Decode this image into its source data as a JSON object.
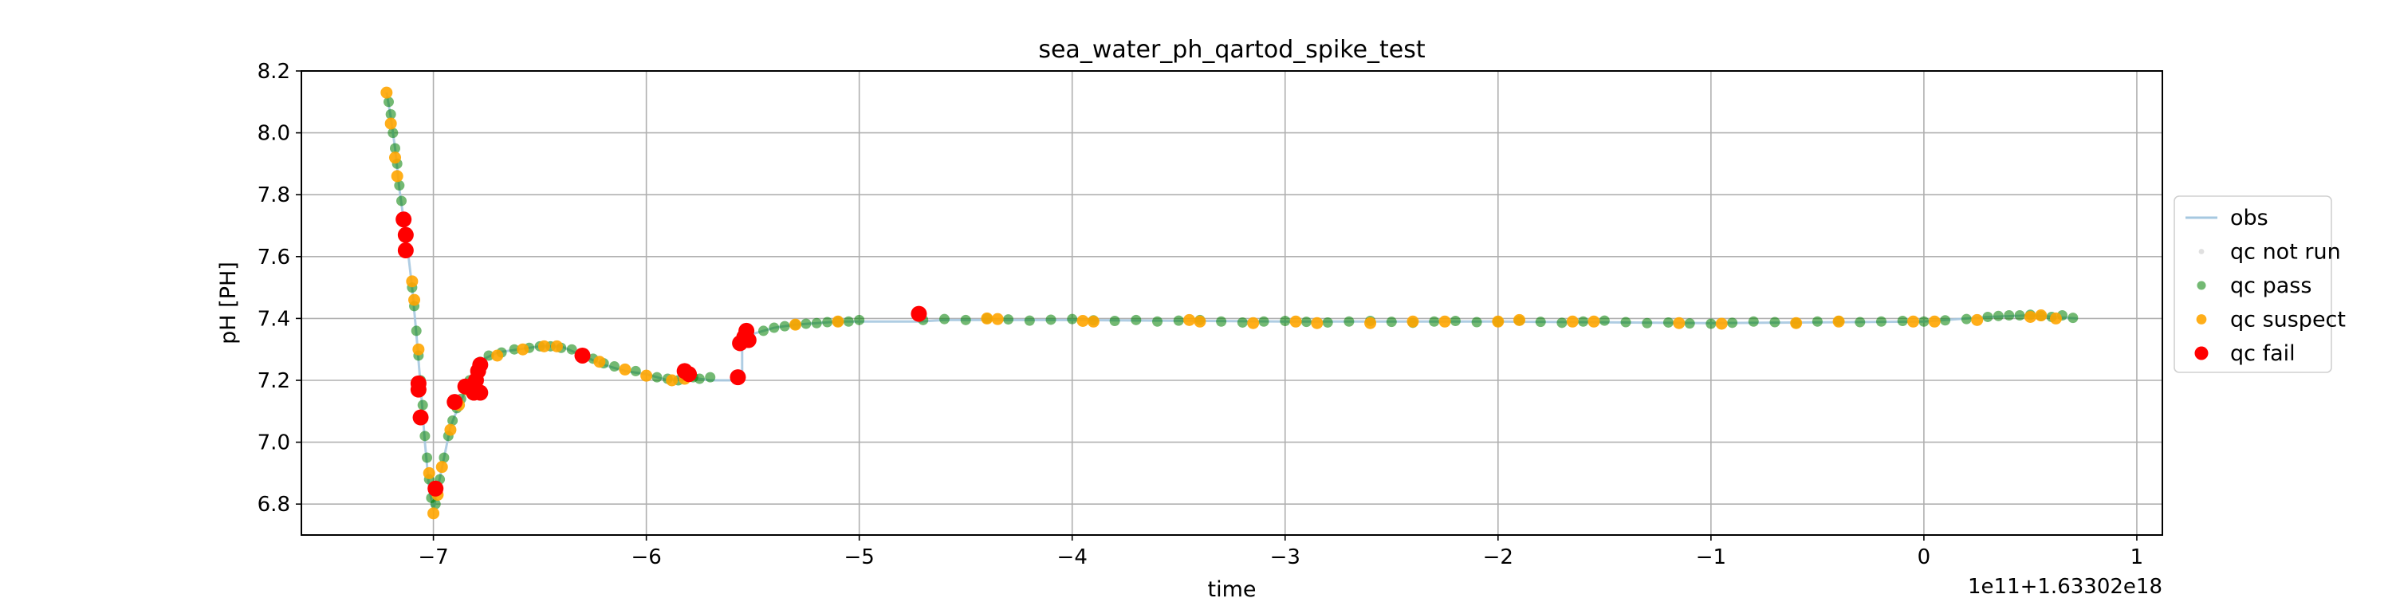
{
  "chart_data": {
    "type": "scatter",
    "title": "sea_water_ph_qartod_spike_test",
    "xlabel": "time",
    "ylabel": "pH [PH]",
    "x_offset_label": "1e11+1.63302e18",
    "xlim": [
      -7.62,
      1.12
    ],
    "ylim": [
      6.7,
      8.2
    ],
    "x_ticks": [
      {
        "value": -7,
        "label": "−7"
      },
      {
        "value": -6,
        "label": "−6"
      },
      {
        "value": -5,
        "label": "−5"
      },
      {
        "value": -4,
        "label": "−4"
      },
      {
        "value": -3,
        "label": "−3"
      },
      {
        "value": -2,
        "label": "−2"
      },
      {
        "value": -1,
        "label": "−1"
      },
      {
        "value": 0,
        "label": "0"
      },
      {
        "value": 1,
        "label": "1"
      }
    ],
    "y_ticks": [
      {
        "value": 6.8,
        "label": "6.8"
      },
      {
        "value": 7.0,
        "label": "7.0"
      },
      {
        "value": 7.2,
        "label": "7.2"
      },
      {
        "value": 7.4,
        "label": "7.4"
      },
      {
        "value": 7.6,
        "label": "7.6"
      },
      {
        "value": 7.8,
        "label": "7.8"
      },
      {
        "value": 8.0,
        "label": "8.0"
      },
      {
        "value": 8.2,
        "label": "8.2"
      }
    ],
    "grid": true,
    "legend_position": "right",
    "series": [
      {
        "name": "obs",
        "kind": "line",
        "color": "#a6c8e0",
        "points": [
          [
            -7.22,
            8.13
          ],
          [
            -7.2,
            8.05
          ],
          [
            -7.18,
            7.95
          ],
          [
            -7.16,
            7.82
          ],
          [
            -7.14,
            7.72
          ],
          [
            -7.12,
            7.62
          ],
          [
            -7.1,
            7.5
          ],
          [
            -7.08,
            7.35
          ],
          [
            -7.06,
            7.18
          ],
          [
            -7.04,
            7.0
          ],
          [
            -7.02,
            6.85
          ],
          [
            -7.0,
            6.78
          ],
          [
            -6.98,
            6.85
          ],
          [
            -6.95,
            6.95
          ],
          [
            -6.92,
            7.05
          ],
          [
            -6.88,
            7.12
          ],
          [
            -6.84,
            7.18
          ],
          [
            -6.8,
            7.23
          ],
          [
            -6.76,
            7.27
          ],
          [
            -6.7,
            7.29
          ],
          [
            -6.6,
            7.3
          ],
          [
            -6.5,
            7.31
          ],
          [
            -6.4,
            7.31
          ],
          [
            -6.3,
            7.28
          ],
          [
            -6.2,
            7.25
          ],
          [
            -6.1,
            7.23
          ],
          [
            -6.0,
            7.22
          ],
          [
            -5.9,
            7.2
          ],
          [
            -5.8,
            7.21
          ],
          [
            -5.7,
            7.2
          ],
          [
            -5.6,
            7.2
          ],
          [
            -5.55,
            7.21
          ],
          [
            -5.55,
            7.33
          ],
          [
            -5.5,
            7.35
          ],
          [
            -5.4,
            7.37
          ],
          [
            -5.3,
            7.38
          ],
          [
            -5.2,
            7.385
          ],
          [
            -5.1,
            7.39
          ],
          [
            -5.0,
            7.39
          ],
          [
            -4.72,
            7.39
          ],
          [
            -4.6,
            7.395
          ],
          [
            -4.0,
            7.395
          ],
          [
            -3.0,
            7.39
          ],
          [
            -2.0,
            7.39
          ],
          [
            -1.0,
            7.385
          ],
          [
            0.0,
            7.39
          ],
          [
            0.3,
            7.405
          ],
          [
            0.5,
            7.41
          ],
          [
            0.72,
            7.4
          ]
        ]
      },
      {
        "name": "qc not run",
        "kind": "points",
        "color": "#d3d3d3",
        "points": []
      },
      {
        "name": "qc pass",
        "kind": "points",
        "color": "#008000",
        "points": [
          [
            -7.21,
            8.1
          ],
          [
            -7.2,
            8.06
          ],
          [
            -7.19,
            8.0
          ],
          [
            -7.18,
            7.95
          ],
          [
            -7.17,
            7.9
          ],
          [
            -7.16,
            7.83
          ],
          [
            -7.15,
            7.78
          ],
          [
            -7.12,
            7.62
          ],
          [
            -7.1,
            7.5
          ],
          [
            -7.09,
            7.44
          ],
          [
            -7.08,
            7.36
          ],
          [
            -7.07,
            7.28
          ],
          [
            -7.06,
            7.2
          ],
          [
            -7.05,
            7.12
          ],
          [
            -7.04,
            7.02
          ],
          [
            -7.03,
            6.95
          ],
          [
            -7.02,
            6.88
          ],
          [
            -7.01,
            6.82
          ],
          [
            -6.99,
            6.8
          ],
          [
            -6.97,
            6.88
          ],
          [
            -6.95,
            6.95
          ],
          [
            -6.93,
            7.02
          ],
          [
            -6.91,
            7.07
          ],
          [
            -6.89,
            7.11
          ],
          [
            -6.87,
            7.14
          ],
          [
            -6.85,
            7.17
          ],
          [
            -6.83,
            7.2
          ],
          [
            -6.78,
            7.26
          ],
          [
            -6.74,
            7.28
          ],
          [
            -6.68,
            7.29
          ],
          [
            -6.62,
            7.3
          ],
          [
            -6.55,
            7.305
          ],
          [
            -6.5,
            7.31
          ],
          [
            -6.45,
            7.31
          ],
          [
            -6.4,
            7.305
          ],
          [
            -6.35,
            7.3
          ],
          [
            -6.25,
            7.27
          ],
          [
            -6.2,
            7.255
          ],
          [
            -6.15,
            7.245
          ],
          [
            -6.05,
            7.23
          ],
          [
            -5.95,
            7.21
          ],
          [
            -5.9,
            7.205
          ],
          [
            -5.85,
            7.2
          ],
          [
            -5.78,
            7.21
          ],
          [
            -5.75,
            7.205
          ],
          [
            -5.7,
            7.21
          ],
          [
            -5.45,
            7.36
          ],
          [
            -5.4,
            7.37
          ],
          [
            -5.35,
            7.375
          ],
          [
            -5.3,
            7.38
          ],
          [
            -5.25,
            7.383
          ],
          [
            -5.2,
            7.385
          ],
          [
            -5.15,
            7.388
          ],
          [
            -5.1,
            7.39
          ],
          [
            -5.05,
            7.39
          ],
          [
            -5.0,
            7.395
          ],
          [
            -4.7,
            7.395
          ],
          [
            -4.6,
            7.398
          ],
          [
            -4.5,
            7.395
          ],
          [
            -4.4,
            7.4
          ],
          [
            -4.3,
            7.397
          ],
          [
            -4.2,
            7.393
          ],
          [
            -4.1,
            7.396
          ],
          [
            -4.0,
            7.398
          ],
          [
            -3.9,
            7.394
          ],
          [
            -3.8,
            7.392
          ],
          [
            -3.7,
            7.395
          ],
          [
            -3.6,
            7.39
          ],
          [
            -3.5,
            7.393
          ],
          [
            -3.4,
            7.395
          ],
          [
            -3.3,
            7.39
          ],
          [
            -3.2,
            7.387
          ],
          [
            -3.1,
            7.39
          ],
          [
            -3.0,
            7.392
          ],
          [
            -2.9,
            7.389
          ],
          [
            -2.8,
            7.387
          ],
          [
            -2.7,
            7.39
          ],
          [
            -2.6,
            7.392
          ],
          [
            -2.5,
            7.389
          ],
          [
            -2.4,
            7.386
          ],
          [
            -2.3,
            7.39
          ],
          [
            -2.2,
            7.392
          ],
          [
            -2.1,
            7.388
          ],
          [
            -2.0,
            7.39
          ],
          [
            -1.9,
            7.393
          ],
          [
            -1.8,
            7.389
          ],
          [
            -1.7,
            7.386
          ],
          [
            -1.6,
            7.39
          ],
          [
            -1.5,
            7.393
          ],
          [
            -1.4,
            7.388
          ],
          [
            -1.3,
            7.385
          ],
          [
            -1.2,
            7.387
          ],
          [
            -1.1,
            7.384
          ],
          [
            -1.0,
            7.383
          ],
          [
            -0.9,
            7.386
          ],
          [
            -0.8,
            7.39
          ],
          [
            -0.7,
            7.388
          ],
          [
            -0.6,
            7.385
          ],
          [
            -0.5,
            7.39
          ],
          [
            -0.4,
            7.392
          ],
          [
            -0.3,
            7.388
          ],
          [
            -0.2,
            7.39
          ],
          [
            -0.1,
            7.392
          ],
          [
            0.0,
            7.39
          ],
          [
            0.1,
            7.394
          ],
          [
            0.2,
            7.398
          ],
          [
            0.3,
            7.405
          ],
          [
            0.35,
            7.408
          ],
          [
            0.4,
            7.41
          ],
          [
            0.45,
            7.41
          ],
          [
            0.5,
            7.412
          ],
          [
            0.55,
            7.408
          ],
          [
            0.6,
            7.405
          ],
          [
            0.65,
            7.41
          ],
          [
            0.7,
            7.402
          ]
        ]
      },
      {
        "name": "qc suspect",
        "kind": "points",
        "color": "#ffa500",
        "points": [
          [
            -7.22,
            8.13
          ],
          [
            -7.2,
            8.03
          ],
          [
            -7.18,
            7.92
          ],
          [
            -7.17,
            7.86
          ],
          [
            -7.1,
            7.52
          ],
          [
            -7.09,
            7.46
          ],
          [
            -7.07,
            7.3
          ],
          [
            -7.02,
            6.9
          ],
          [
            -7.0,
            6.77
          ],
          [
            -6.98,
            6.83
          ],
          [
            -6.96,
            6.92
          ],
          [
            -6.92,
            7.04
          ],
          [
            -6.88,
            7.12
          ],
          [
            -6.84,
            7.17
          ],
          [
            -6.7,
            7.28
          ],
          [
            -6.58,
            7.3
          ],
          [
            -6.48,
            7.31
          ],
          [
            -6.42,
            7.31
          ],
          [
            -6.3,
            7.285
          ],
          [
            -6.22,
            7.26
          ],
          [
            -6.1,
            7.235
          ],
          [
            -6.0,
            7.215
          ],
          [
            -5.88,
            7.2
          ],
          [
            -5.82,
            7.205
          ],
          [
            -5.3,
            7.38
          ],
          [
            -5.1,
            7.39
          ],
          [
            -4.4,
            7.4
          ],
          [
            -4.35,
            7.398
          ],
          [
            -3.95,
            7.392
          ],
          [
            -3.9,
            7.39
          ],
          [
            -3.45,
            7.395
          ],
          [
            -3.4,
            7.39
          ],
          [
            -3.15,
            7.385
          ],
          [
            -2.95,
            7.39
          ],
          [
            -2.85,
            7.385
          ],
          [
            -2.6,
            7.385
          ],
          [
            -2.4,
            7.39
          ],
          [
            -2.25,
            7.39
          ],
          [
            -2.0,
            7.39
          ],
          [
            -1.9,
            7.395
          ],
          [
            -1.65,
            7.39
          ],
          [
            -1.55,
            7.39
          ],
          [
            -1.15,
            7.385
          ],
          [
            -0.95,
            7.383
          ],
          [
            -0.6,
            7.385
          ],
          [
            -0.4,
            7.39
          ],
          [
            -0.05,
            7.39
          ],
          [
            0.05,
            7.39
          ],
          [
            0.25,
            7.395
          ],
          [
            0.5,
            7.405
          ],
          [
            0.55,
            7.41
          ],
          [
            0.62,
            7.4
          ]
        ]
      },
      {
        "name": "qc fail",
        "kind": "points",
        "color": "#ff0000",
        "points": [
          [
            -7.14,
            7.72
          ],
          [
            -7.13,
            7.67
          ],
          [
            -7.13,
            7.62
          ],
          [
            -7.07,
            7.19
          ],
          [
            -7.07,
            7.17
          ],
          [
            -7.06,
            7.08
          ],
          [
            -6.99,
            6.85
          ],
          [
            -6.9,
            7.13
          ],
          [
            -6.85,
            7.18
          ],
          [
            -6.81,
            7.16
          ],
          [
            -6.8,
            7.2
          ],
          [
            -6.79,
            7.23
          ],
          [
            -6.78,
            7.25
          ],
          [
            -6.78,
            7.16
          ],
          [
            -6.3,
            7.28
          ],
          [
            -5.82,
            7.23
          ],
          [
            -5.8,
            7.22
          ],
          [
            -5.57,
            7.21
          ],
          [
            -5.56,
            7.32
          ],
          [
            -5.54,
            7.34
          ],
          [
            -5.53,
            7.36
          ],
          [
            -5.52,
            7.33
          ],
          [
            -4.72,
            7.415
          ]
        ]
      }
    ]
  }
}
